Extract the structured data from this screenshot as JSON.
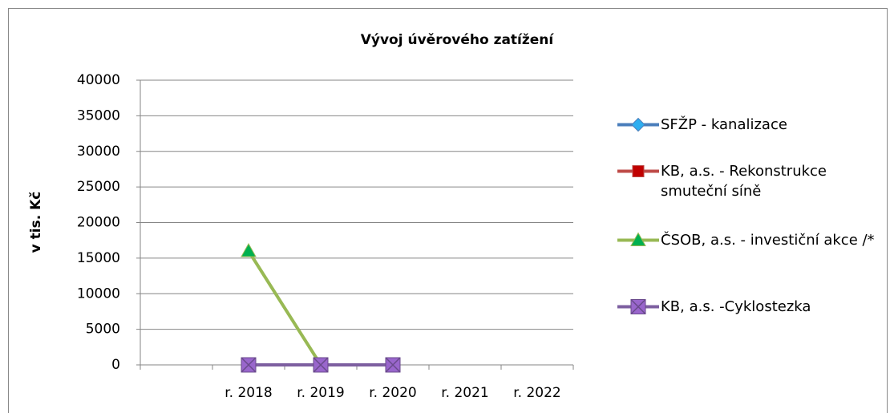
{
  "chart_data": {
    "type": "line",
    "title": "Vývoj úvěrového zatížení",
    "y_label": "v tis. Kč",
    "categories": [
      null,
      "r. 2018",
      "r. 2019",
      "r. 2020",
      "r. 2021",
      "r. 2022"
    ],
    "series": [
      {
        "name": "SFŽP - kanalizace",
        "color": "#4a7ebb",
        "marker": "diamond",
        "values": [
          null,
          null,
          null,
          null,
          null,
          null
        ]
      },
      {
        "name": "KB, a.s. - Rekonstrukce smuteční síně",
        "color": "#be4b48",
        "marker": "square",
        "values": [
          null,
          null,
          null,
          null,
          null,
          null
        ]
      },
      {
        "name": "ČSOB, a.s. - investiční akce /*",
        "color": "#98b954",
        "marker": "triangle",
        "values": [
          null,
          16000,
          0,
          null,
          null,
          null
        ]
      },
      {
        "name": "KB, a.s. -Cyklostezka",
        "color": "#7d5fa0",
        "marker": "xsquare",
        "values": [
          null,
          0,
          0,
          0,
          null,
          null
        ]
      }
    ],
    "ylim": [
      0,
      40000
    ],
    "yticks": [
      0,
      5000,
      10000,
      15000,
      20000,
      25000,
      30000,
      35000,
      40000
    ],
    "grid": true,
    "legend": "right"
  }
}
